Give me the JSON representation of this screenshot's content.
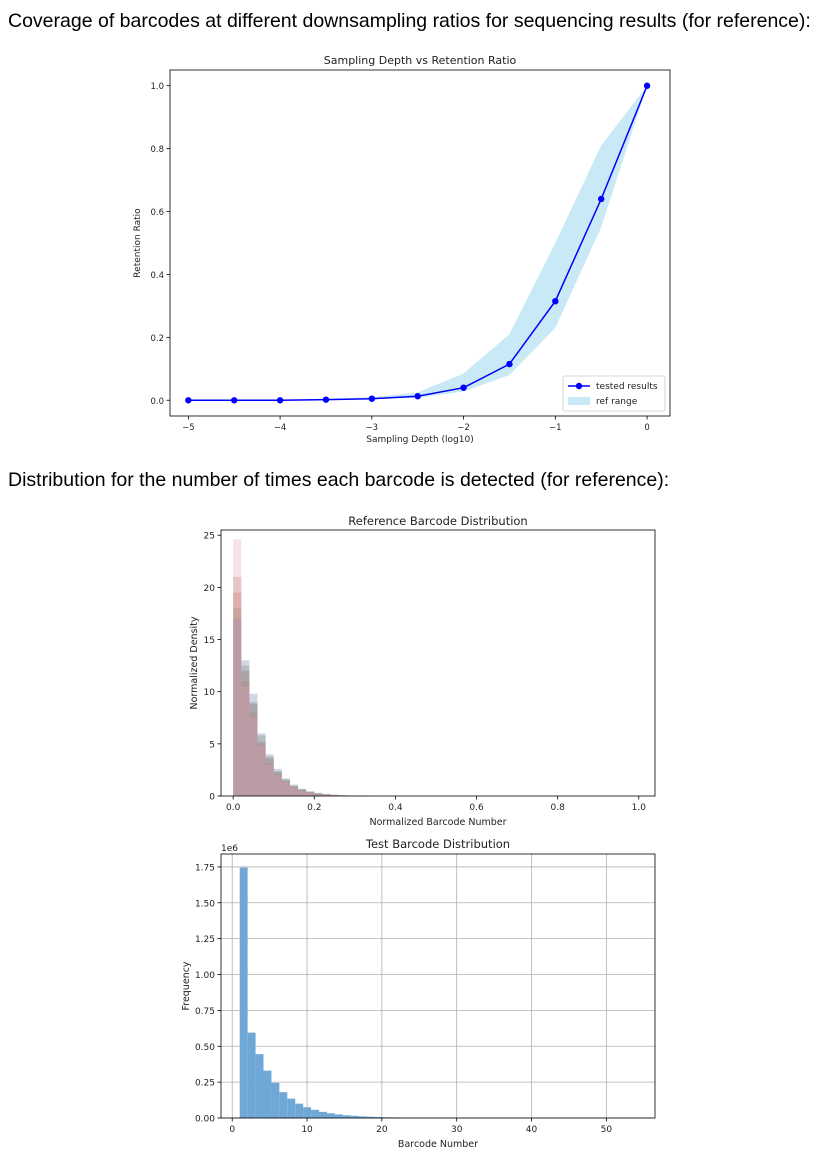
{
  "headings": {
    "coverage": "Coverage of barcodes at different downsampling ratios for sequencing results (for reference):",
    "distribution": "Distribution for the number of times each barcode is detected (for reference):"
  },
  "colors": {
    "tested_line": "#0000ff",
    "ref_band": "#87ceeb",
    "test_hist": "#6fa8d6",
    "grid": "#b0b0b0"
  },
  "chart_data": [
    {
      "type": "line",
      "title": "Sampling Depth vs Retention Ratio",
      "xlabel": "Sampling Depth (log10)",
      "ylabel": "Retention Ratio",
      "xlim": [
        -5.2,
        0.25
      ],
      "ylim": [
        -0.05,
        1.05
      ],
      "xticks": [
        -5,
        -4,
        -3,
        -2,
        -1,
        0
      ],
      "xtick_labels": [
        "−5",
        "−4",
        "−3",
        "−2",
        "−1",
        "0"
      ],
      "yticks": [
        0.0,
        0.2,
        0.4,
        0.6,
        0.8,
        1.0
      ],
      "ytick_labels": [
        "0.0",
        "0.2",
        "0.4",
        "0.6",
        "0.8",
        "1.0"
      ],
      "grid": false,
      "legend_position": "bottom-right",
      "series": [
        {
          "name": "tested results",
          "x": [
            -5,
            -4.5,
            -4,
            -3.5,
            -3,
            -2.5,
            -2,
            -1.5,
            -1,
            -0.5,
            0
          ],
          "y": [
            0.0,
            0.0,
            0.0,
            0.002,
            0.005,
            0.013,
            0.04,
            0.115,
            0.315,
            0.64,
            1.0
          ]
        }
      ],
      "ref_range": {
        "name": "ref range",
        "x": [
          -5,
          -4.5,
          -4,
          -3.5,
          -3,
          -2.5,
          -2,
          -1.5,
          -1,
          -0.5,
          0
        ],
        "lower": [
          0.0,
          0.0,
          0.0,
          0.0,
          0.003,
          0.008,
          0.028,
          0.08,
          0.23,
          0.55,
          1.0
        ],
        "upper": [
          0.0,
          0.0,
          0.0,
          0.004,
          0.01,
          0.025,
          0.085,
          0.21,
          0.5,
          0.81,
          1.0
        ]
      }
    },
    {
      "type": "bar",
      "subtype": "histogram",
      "title": "Reference Barcode Distribution",
      "xlabel": "Normalized Barcode Number",
      "ylabel": "Normalized Density",
      "xlim": [
        -0.03,
        1.04
      ],
      "ylim": [
        0,
        25.5
      ],
      "xticks": [
        0.0,
        0.2,
        0.4,
        0.6,
        0.8,
        1.0
      ],
      "xtick_labels": [
        "0.0",
        "0.2",
        "0.4",
        "0.6",
        "0.8",
        "1.0"
      ],
      "yticks": [
        0,
        5,
        10,
        15,
        20,
        25
      ],
      "ytick_labels": [
        "0",
        "5",
        "10",
        "15",
        "20",
        "25"
      ],
      "grid": false,
      "bin_width": 0.02,
      "series": [
        {
          "color": "#c65b5b",
          "values": [
            19.5,
            12.0,
            8.8,
            5.2,
            3.6,
            2.3,
            1.5,
            0.9,
            0.6,
            0.4,
            0.25,
            0.15,
            0.1,
            0.06,
            0.04,
            0.03,
            0.02,
            0.01
          ]
        },
        {
          "color": "#5f8f5f",
          "values": [
            18.0,
            12.5,
            9.0,
            5.8,
            3.8,
            2.4,
            1.6,
            1.0,
            0.65,
            0.42,
            0.27,
            0.17,
            0.11,
            0.07,
            0.05,
            0.03,
            0.02,
            0.01
          ]
        },
        {
          "color": "#b8864a",
          "values": [
            21.0,
            11.0,
            8.0,
            5.0,
            3.2,
            2.1,
            1.4,
            0.9,
            0.55,
            0.35,
            0.22,
            0.14,
            0.09,
            0.06,
            0.04,
            0.02,
            0.01,
            0.01
          ]
        },
        {
          "color": "#7a7fb0",
          "values": [
            17.0,
            13.0,
            9.8,
            6.0,
            4.0,
            2.6,
            1.7,
            1.1,
            0.7,
            0.45,
            0.3,
            0.2,
            0.12,
            0.08,
            0.05,
            0.03,
            0.02,
            0.01
          ]
        },
        {
          "color": "#e8a0c8",
          "values": [
            24.6,
            10.5,
            7.5,
            4.8,
            3.0,
            2.0,
            1.3,
            0.8,
            0.5,
            0.3,
            0.2,
            0.12,
            0.08,
            0.05,
            0.03,
            0.02,
            0.01,
            0.0
          ]
        }
      ]
    },
    {
      "type": "bar",
      "subtype": "histogram",
      "title": "Test Barcode Distribution",
      "xlabel": "Barcode Number",
      "ylabel": "Frequency",
      "y_offset_label": "1e6",
      "xlim": [
        -1.5,
        56.5
      ],
      "ylim": [
        0,
        1.84
      ],
      "xticks": [
        0,
        10,
        20,
        30,
        40,
        50
      ],
      "xtick_labels": [
        "0",
        "10",
        "20",
        "30",
        "40",
        "50"
      ],
      "yticks": [
        0,
        0.25,
        0.5,
        0.75,
        1.0,
        1.25,
        1.5,
        1.75
      ],
      "ytick_labels": [
        "0.00",
        "0.25",
        "0.50",
        "0.75",
        "1.00",
        "1.25",
        "1.50",
        "1.75"
      ],
      "grid": true,
      "bin_start": 1,
      "bin_width": 1.06,
      "values": [
        1.745,
        0.595,
        0.445,
        0.33,
        0.245,
        0.18,
        0.135,
        0.1,
        0.075,
        0.057,
        0.043,
        0.033,
        0.025,
        0.019,
        0.015,
        0.011,
        0.009,
        0.007,
        0.005,
        0.004,
        0.003,
        0.0025,
        0.002,
        0.0015,
        0.001
      ]
    }
  ]
}
